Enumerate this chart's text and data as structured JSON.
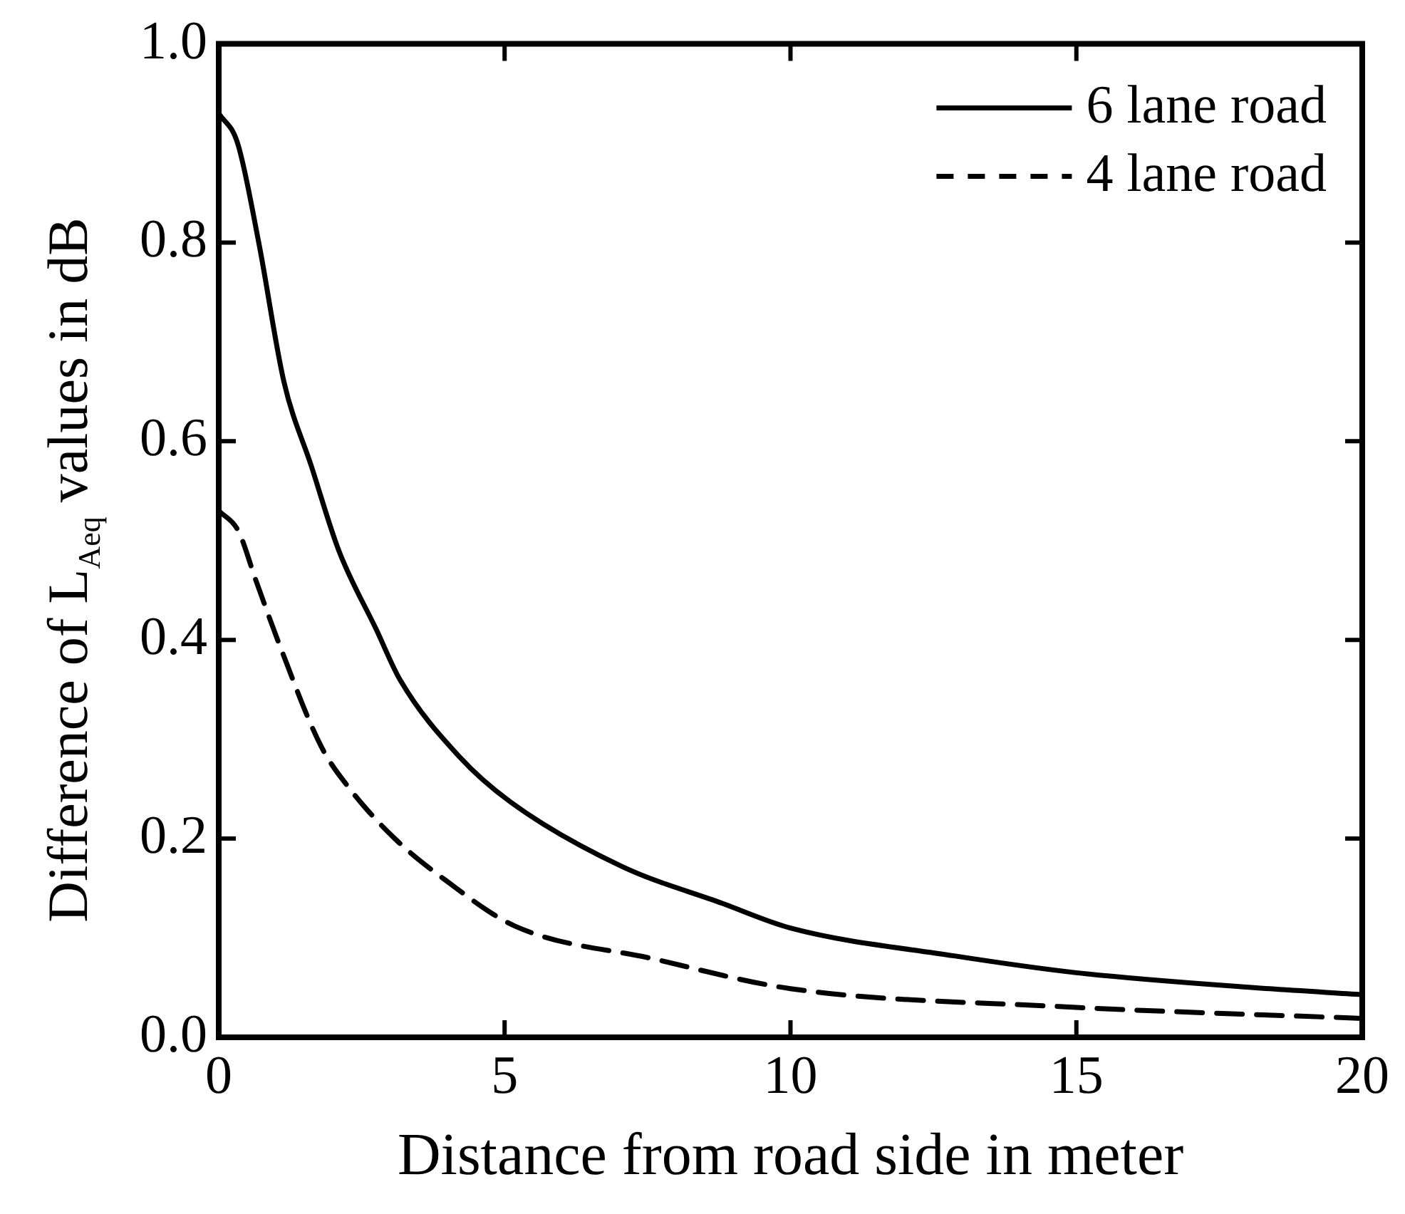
{
  "chart_data": {
    "type": "line",
    "xlabel": "Distance from road side in meter",
    "ylabel": "Difference of L$_{Aeq}$ values in dB",
    "xlim": [
      0,
      20
    ],
    "xticks": [
      0,
      5,
      10,
      15,
      20
    ],
    "ylim": [
      0,
      1
    ],
    "yticks": [
      {
        "value": 0,
        "label": "0.0"
      },
      {
        "value": 0.2,
        "label": "0.2"
      },
      {
        "value": 0.4,
        "label": "0.4"
      },
      {
        "value": 0.6,
        "label": "0.6"
      },
      {
        "value": 0.8,
        "label": "0.8"
      },
      {
        "value": 1,
        "label": "1.0"
      }
    ],
    "legend": "top right",
    "grid": false,
    "marker": "none",
    "series": [
      {
        "name": "6 lane road",
        "color": "#000000",
        "line_style": "solid",
        "x": [
          0,
          0.33,
          0.7,
          1.14,
          1.62,
          2.1,
          2.76,
          3.17,
          4.2,
          5.1,
          7.05,
          8.8,
          10,
          12.86,
          15,
          18.1,
          20
        ],
        "values": [
          0.93,
          0.9,
          0.8,
          0.66,
          0.575,
          0.49,
          0.41,
          0.36,
          0.283,
          0.237,
          0.172,
          0.135,
          0.11,
          0.082,
          0.065,
          0.05,
          0.043
        ]
      },
      {
        "name": "4 lane road",
        "color": "#000000",
        "line_style": "dashed",
        "x": [
          0,
          0.34,
          0.65,
          1.07,
          1.79,
          2.28,
          3.08,
          3.97,
          5.18,
          7.6,
          10,
          14.7,
          20
        ],
        "values": [
          0.53,
          0.51,
          0.46,
          0.394,
          0.293,
          0.251,
          0.2,
          0.158,
          0.112,
          0.079,
          0.049,
          0.031,
          0.019
        ]
      }
    ]
  }
}
